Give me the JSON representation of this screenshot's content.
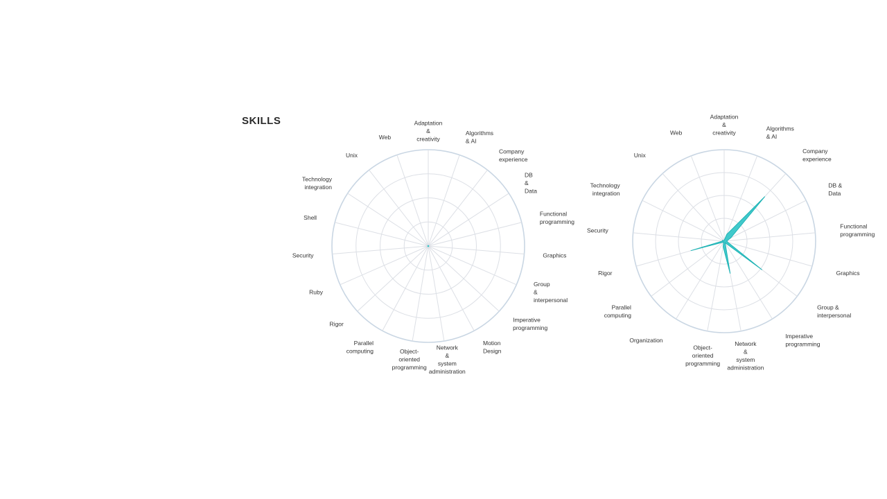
{
  "section": {
    "title": "SKILLS"
  },
  "colors": {
    "accent": "#2ec4c6",
    "accent_stroke": "#1fb3b5",
    "grid": "#dcdfe5",
    "outer_ring": "#c9d6e3",
    "text": "#333333"
  },
  "chart_data": [
    {
      "type": "radar",
      "title": "",
      "rmax": 100,
      "grid_rings": 4,
      "axes": [
        [
          "Adaptation",
          "&",
          "creativity"
        ],
        [
          "Algorithms",
          "& AI"
        ],
        [
          "Company",
          "experience"
        ],
        [
          "DB",
          "&",
          "Data"
        ],
        [
          "Functional",
          "programming"
        ],
        [
          "Graphics"
        ],
        [
          "Group",
          "&",
          "interpersonal"
        ],
        [
          "Imperative",
          "programming"
        ],
        [
          "Motion",
          "Design"
        ],
        [
          "Network",
          "&",
          "system",
          "administration"
        ],
        [
          "Object-",
          "oriented",
          "programming"
        ],
        [
          "Parallel",
          "computing"
        ],
        [
          "Rigor"
        ],
        [
          "Ruby"
        ],
        [
          "Security"
        ],
        [
          "Shell"
        ],
        [
          "Technology",
          "integration"
        ],
        [
          "Unix"
        ],
        [
          "Web"
        ]
      ],
      "series": [
        {
          "values": [
            0,
            0,
            0,
            0,
            0,
            0,
            0,
            0,
            0,
            0,
            0,
            0,
            0,
            0,
            0,
            0,
            0,
            0,
            0
          ]
        }
      ]
    },
    {
      "type": "radar",
      "title": "",
      "rmax": 100,
      "grid_rings": 4,
      "axes": [
        [
          "Adaptation",
          "&",
          "creativity"
        ],
        [
          "Algorithms",
          "& AI"
        ],
        [
          "Company",
          "experience"
        ],
        [
          "DB &",
          "Data"
        ],
        [
          "Functional",
          "programming"
        ],
        [
          "Graphics"
        ],
        [
          "Group &",
          "interpersonal"
        ],
        [
          "Imperative",
          "programming"
        ],
        [
          "Network",
          "&",
          "system",
          "administration"
        ],
        [
          "Object-",
          "oriented",
          "programming"
        ],
        [
          "Organization"
        ],
        [
          "Parallel",
          "computing"
        ],
        [
          "Rigor"
        ],
        [
          "Security"
        ],
        [
          "Technology",
          "integration"
        ],
        [
          "Unix"
        ],
        [
          "Web"
        ]
      ],
      "series": [
        {
          "values": [
            1,
            8,
            66,
            8,
            3,
            4,
            52,
            2,
            36,
            6,
            1,
            2,
            38,
            2,
            2,
            1,
            1
          ]
        }
      ]
    }
  ]
}
